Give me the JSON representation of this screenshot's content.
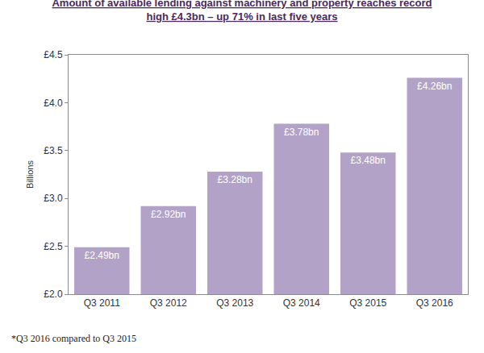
{
  "chart_data": {
    "type": "bar",
    "title": "Amount of available lending against machinery and property reaches record high £4.3bn – up 71% in last five years",
    "y_label": "Billions",
    "categories": [
      "Q3 2011",
      "Q3 2012",
      "Q3 2013",
      "Q3 2014",
      "Q3 2015",
      "Q3 2016"
    ],
    "values": [
      2.49,
      2.92,
      3.28,
      3.78,
      3.48,
      4.26
    ],
    "value_labels": [
      "£2.49bn",
      "£2.92bn",
      "£3.28bn",
      "£3.78bn",
      "£3.48bn",
      "£4.26bn"
    ],
    "data_labels": true,
    "color": "#b3a2c7",
    "ylim": [
      2,
      4.5
    ],
    "yticks": [
      {
        "value": 2,
        "label": "£2.0"
      },
      {
        "value": 2.5,
        "label": "£2.5"
      },
      {
        "value": 3,
        "label": "£3.0"
      },
      {
        "value": 3.5,
        "label": "£3.5"
      },
      {
        "value": 4,
        "label": "£4.0"
      },
      {
        "value": 4.5,
        "label": "£4.5"
      }
    ],
    "grid": false,
    "annotations": [
      "*Q3 2016 compared to Q3 2015"
    ]
  }
}
